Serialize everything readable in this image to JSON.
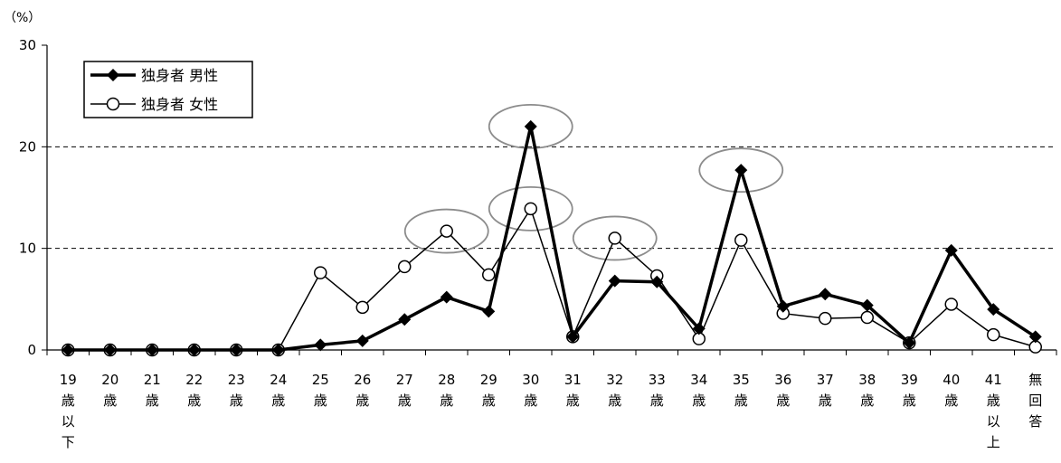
{
  "chart_data": {
    "type": "line",
    "unit_label": "（%）",
    "ylim": [
      0,
      30
    ],
    "y_ticks": [
      "0",
      "10",
      "20",
      "30"
    ],
    "y_tick_values": [
      0,
      10,
      20,
      30
    ],
    "grid": "horizontal dashed lines at 10 and 20",
    "legend_position": "top-left",
    "categories": [
      "19歳以下",
      "20歳",
      "21歳",
      "22歳",
      "23歳",
      "24歳",
      "25歳",
      "26歳",
      "27歳",
      "28歳",
      "29歳",
      "30歳",
      "31歳",
      "32歳",
      "33歳",
      "34歳",
      "35歳",
      "36歳",
      "37歳",
      "38歳",
      "39歳",
      "40歳",
      "41歳以上",
      "無回答"
    ],
    "series": [
      {
        "name": "独身者 男性",
        "marker": "filled-diamond",
        "color": "#000000",
        "values": [
          0,
          0,
          0,
          0,
          0,
          0,
          0.5,
          0.9,
          3.0,
          5.2,
          3.8,
          22.0,
          1.3,
          6.8,
          6.7,
          2.1,
          17.7,
          4.3,
          5.5,
          4.4,
          0.7,
          9.8,
          4.0,
          1.3
        ]
      },
      {
        "name": "独身者 女性",
        "marker": "hollow-circle",
        "color": "#000000",
        "values": [
          0,
          0,
          0,
          0,
          0,
          0,
          7.6,
          4.2,
          8.2,
          11.7,
          7.4,
          13.9,
          1.3,
          11.0,
          7.3,
          1.1,
          10.8,
          3.6,
          3.1,
          3.2,
          0.7,
          4.5,
          1.5,
          0.3
        ]
      }
    ],
    "highlights": [
      {
        "series": 1,
        "category": "28歳"
      },
      {
        "series": 0,
        "category": "30歳"
      },
      {
        "series": 1,
        "category": "30歳"
      },
      {
        "series": 1,
        "category": "32歳"
      },
      {
        "series": 0,
        "category": "35歳"
      }
    ]
  }
}
